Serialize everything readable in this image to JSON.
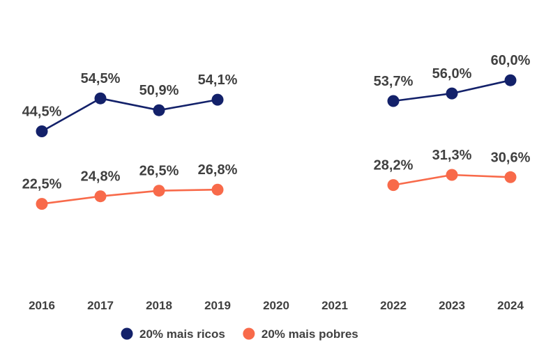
{
  "chart_data": {
    "type": "line",
    "title": "",
    "xlabel": "",
    "ylabel": "",
    "x": [
      "2016",
      "2017",
      "2018",
      "2019",
      "2020",
      "2021",
      "2022",
      "2023",
      "2024"
    ],
    "ylim": [
      0,
      70
    ],
    "grid": false,
    "legend_position": "bottom",
    "series": [
      {
        "name": "20% mais ricos",
        "color": "#13216a",
        "values": [
          44.5,
          54.5,
          50.9,
          54.1,
          null,
          null,
          53.7,
          56.0,
          60.0
        ],
        "labels": [
          "44,5%",
          "54,5%",
          "50,9%",
          "54,1%",
          null,
          null,
          "53,7%",
          "56,0%",
          "60,0%"
        ]
      },
      {
        "name": "20% mais pobres",
        "color": "#f86a4a",
        "values": [
          22.5,
          24.8,
          26.5,
          26.8,
          null,
          null,
          28.2,
          31.3,
          30.6
        ],
        "labels": [
          "22,5%",
          "24,8%",
          "26,5%",
          "26,8%",
          null,
          null,
          "28,2%",
          "31,3%",
          "30,6%"
        ]
      }
    ]
  }
}
